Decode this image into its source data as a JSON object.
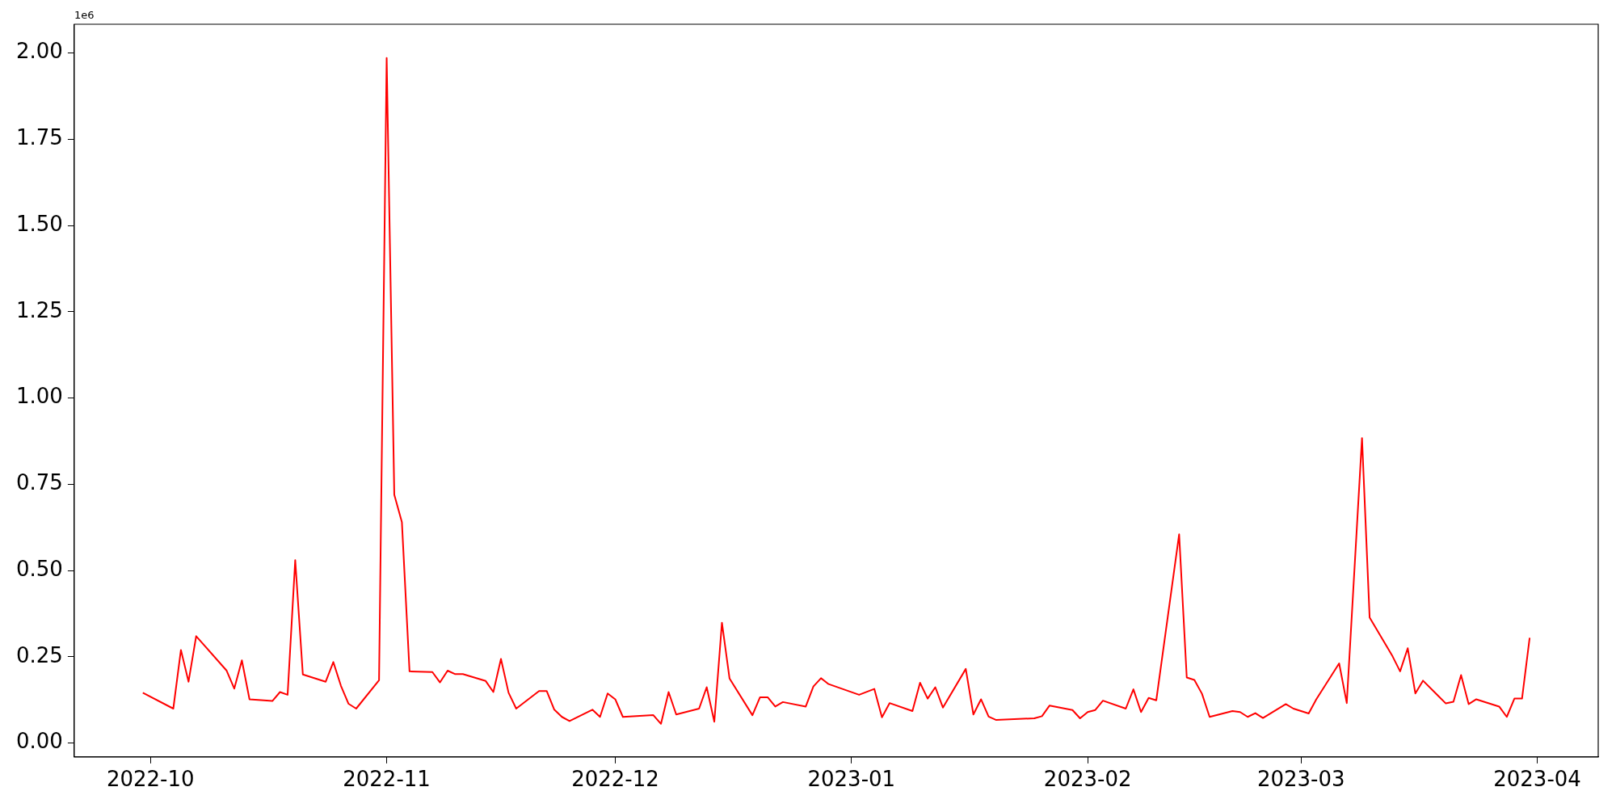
{
  "chart_data": {
    "type": "line",
    "x": [
      "2022-09-30",
      "2022-10-04",
      "2022-10-05",
      "2022-10-06",
      "2022-10-07",
      "2022-10-11",
      "2022-10-12",
      "2022-10-13",
      "2022-10-14",
      "2022-10-17",
      "2022-10-18",
      "2022-10-19",
      "2022-10-20",
      "2022-10-21",
      "2022-10-24",
      "2022-10-25",
      "2022-10-26",
      "2022-10-27",
      "2022-10-28",
      "2022-10-31",
      "2022-11-01",
      "2022-11-02",
      "2022-11-03",
      "2022-11-04",
      "2022-11-07",
      "2022-11-08",
      "2022-11-09",
      "2022-11-10",
      "2022-11-11",
      "2022-11-14",
      "2022-11-15",
      "2022-11-16",
      "2022-11-17",
      "2022-11-18",
      "2022-11-21",
      "2022-11-22",
      "2022-11-23",
      "2022-11-24",
      "2022-11-25",
      "2022-11-28",
      "2022-11-29",
      "2022-11-30",
      "2022-12-01",
      "2022-12-02",
      "2022-12-06",
      "2022-12-07",
      "2022-12-08",
      "2022-12-09",
      "2022-12-12",
      "2022-12-13",
      "2022-12-14",
      "2022-12-15",
      "2022-12-16",
      "2022-12-19",
      "2022-12-20",
      "2022-12-21",
      "2022-12-22",
      "2022-12-23",
      "2022-12-26",
      "2022-12-27",
      "2022-12-28",
      "2022-12-29",
      "2023-01-02",
      "2023-01-04",
      "2023-01-05",
      "2023-01-06",
      "2023-01-09",
      "2023-01-10",
      "2023-01-11",
      "2023-01-12",
      "2023-01-13",
      "2023-01-16",
      "2023-01-17",
      "2023-01-18",
      "2023-01-19",
      "2023-01-20",
      "2023-01-25",
      "2023-01-26",
      "2023-01-27",
      "2023-01-30",
      "2023-01-31",
      "2023-02-01",
      "2023-02-02",
      "2023-02-03",
      "2023-02-06",
      "2023-02-07",
      "2023-02-08",
      "2023-02-09",
      "2023-02-10",
      "2023-02-13",
      "2023-02-14",
      "2023-02-15",
      "2023-02-16",
      "2023-02-17",
      "2023-02-20",
      "2023-02-21",
      "2023-02-22",
      "2023-02-23",
      "2023-02-24",
      "2023-02-27",
      "2023-02-28",
      "2023-03-02",
      "2023-03-03",
      "2023-03-06",
      "2023-03-07",
      "2023-03-09",
      "2023-03-10",
      "2023-03-13",
      "2023-03-14",
      "2023-03-15",
      "2023-03-16",
      "2023-03-17",
      "2023-03-20",
      "2023-03-21",
      "2023-03-22",
      "2023-03-23",
      "2023-03-24",
      "2023-03-27",
      "2023-03-28",
      "2023-03-29",
      "2023-03-30",
      "2023-03-31"
    ],
    "series": [
      {
        "color": "#ff0000",
        "values": [
          0.146,
          0.1,
          0.27,
          0.178,
          0.31,
          0.21,
          0.158,
          0.24,
          0.127,
          0.122,
          0.148,
          0.14,
          0.53,
          0.199,
          0.178,
          0.235,
          0.166,
          0.114,
          0.1,
          0.182,
          1.985,
          0.72,
          0.64,
          0.208,
          0.206,
          0.176,
          0.21,
          0.2,
          0.2,
          0.18,
          0.148,
          0.244,
          0.146,
          0.1,
          0.151,
          0.151,
          0.097,
          0.076,
          0.064,
          0.097,
          0.076,
          0.144,
          0.127,
          0.076,
          0.081,
          0.056,
          0.148,
          0.083,
          0.1,
          0.162,
          0.062,
          0.349,
          0.187,
          0.081,
          0.133,
          0.133,
          0.106,
          0.119,
          0.106,
          0.164,
          0.188,
          0.171,
          0.14,
          0.157,
          0.075,
          0.116,
          0.093,
          0.175,
          0.129,
          0.162,
          0.103,
          0.215,
          0.083,
          0.127,
          0.077,
          0.067,
          0.072,
          0.078,
          0.109,
          0.096,
          0.072,
          0.09,
          0.096,
          0.123,
          0.1,
          0.156,
          0.09,
          0.131,
          0.124,
          0.605,
          0.19,
          0.183,
          0.143,
          0.076,
          0.093,
          0.09,
          0.076,
          0.087,
          0.073,
          0.113,
          0.1,
          0.086,
          0.127,
          0.231,
          0.116,
          0.884,
          0.364,
          0.252,
          0.208,
          0.275,
          0.144,
          0.181,
          0.115,
          0.12,
          0.197,
          0.113,
          0.127,
          0.106,
          0.076,
          0.129,
          0.129,
          0.305
        ]
      }
    ],
    "xlim": [
      "2022-09-21",
      "2023-04-09"
    ],
    "xticks": [
      "2022-10",
      "2022-11",
      "2022-12",
      "2023-01",
      "2023-02",
      "2023-03",
      "2023-04"
    ],
    "ylim": [
      -0.04,
      2.083
    ],
    "yticks": [
      {
        "value": 0,
        "label": "0.00"
      },
      0.25,
      {
        "value": 0.5,
        "label": "0.50"
      },
      0.75,
      {
        "value": 1,
        "label": "1.00"
      },
      1.25,
      {
        "value": 1.5,
        "label": "1.50"
      },
      1.75,
      {
        "value": 2,
        "label": "2.00"
      }
    ],
    "annotations": [
      "1e6"
    ],
    "legend": false
  }
}
